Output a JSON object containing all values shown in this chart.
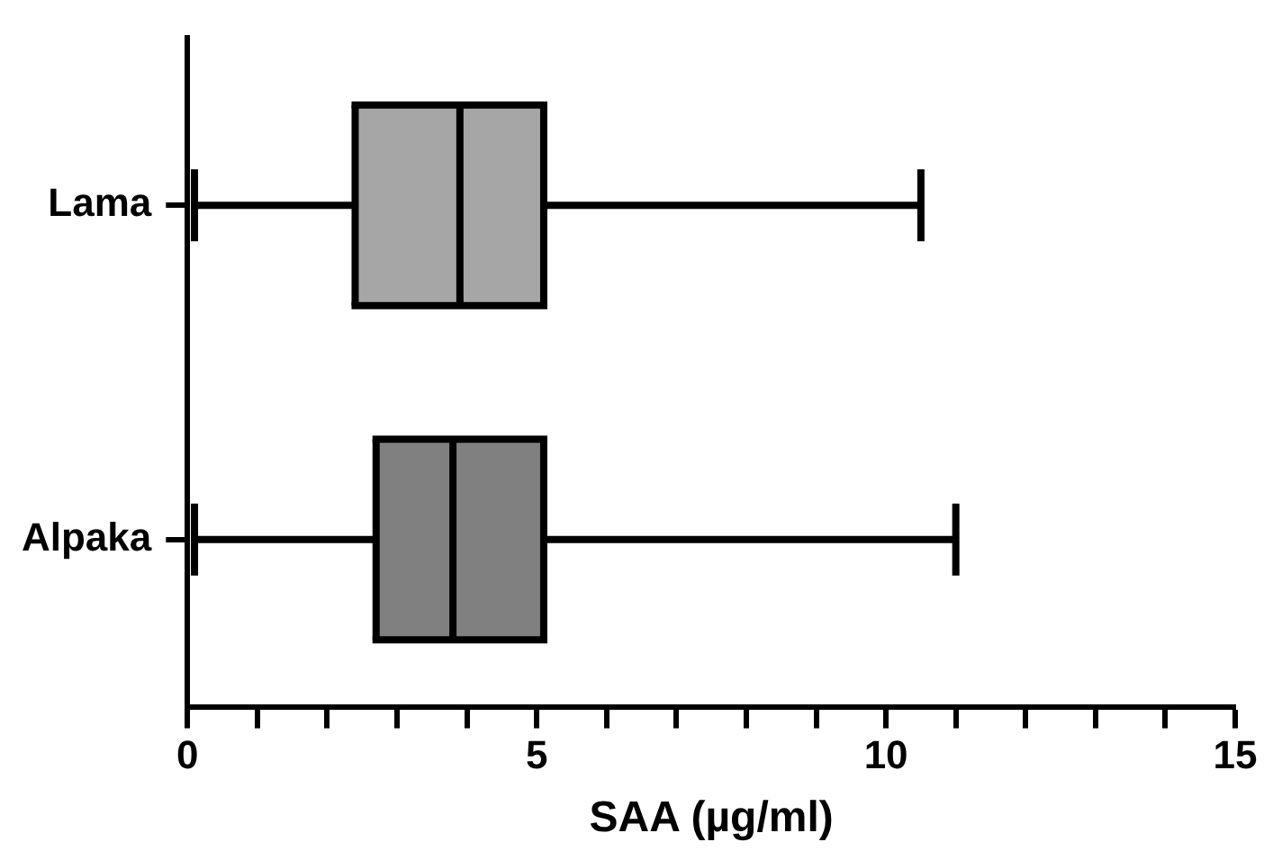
{
  "chart_data": {
    "type": "box",
    "orientation": "horizontal",
    "xlabel": "SAA (µg/ml)",
    "categories": [
      "Lama",
      "Alpaka"
    ],
    "colors": [
      "#a6a6a6",
      "#808080"
    ],
    "boxes": [
      {
        "low": 0.1,
        "q1": 2.4,
        "median": 3.9,
        "q3": 5.1,
        "high": 10.5
      },
      {
        "low": 0.1,
        "q1": 2.7,
        "median": 3.8,
        "q3": 5.1,
        "high": 11.0
      }
    ],
    "xlim": [
      0,
      15
    ],
    "xticks": [
      0,
      {
        "value": 1,
        "label": null
      },
      {
        "value": 2,
        "label": null
      },
      {
        "value": 3,
        "label": null
      },
      {
        "value": 4,
        "label": null
      },
      5,
      {
        "value": 6,
        "label": null
      },
      {
        "value": 7,
        "label": null
      },
      {
        "value": 8,
        "label": null
      },
      {
        "value": 9,
        "label": null
      },
      10,
      {
        "value": 11,
        "label": null
      },
      {
        "value": 12,
        "label": null
      },
      {
        "value": 13,
        "label": null
      },
      {
        "value": 14,
        "label": null
      },
      15
    ],
    "grid": false,
    "legend": false
  }
}
